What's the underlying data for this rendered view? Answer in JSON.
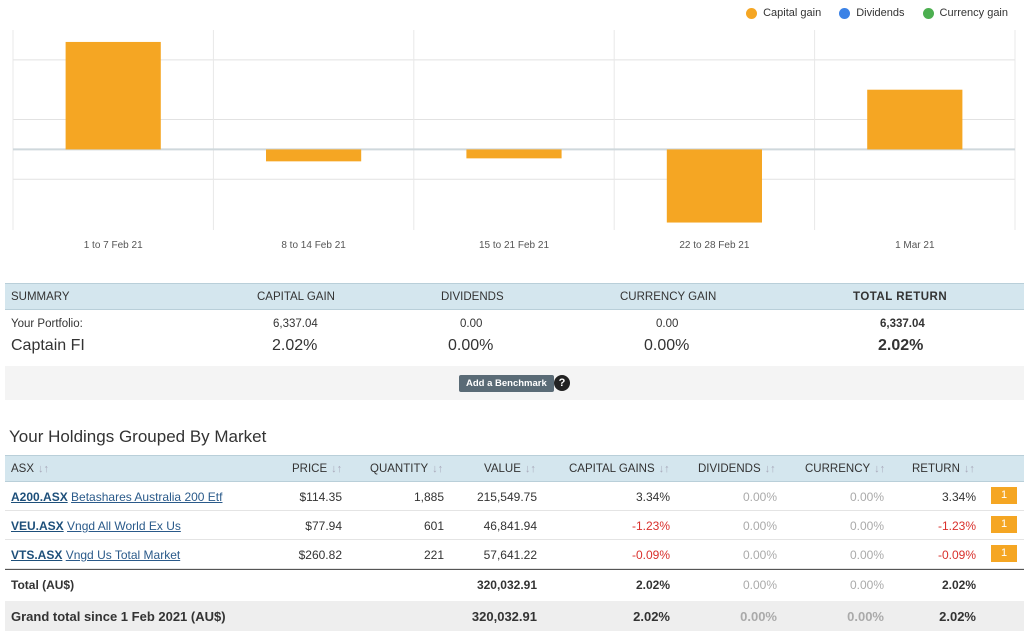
{
  "legend": [
    {
      "label": "Capital gain",
      "color": "#f5a623"
    },
    {
      "label": "Dividends",
      "color": "#3b82e6"
    },
    {
      "label": "Currency gain",
      "color": "#4caf50"
    }
  ],
  "chart_data": {
    "type": "bar",
    "categories": [
      "1 to 7 Feb 21",
      "8 to 14 Feb 21",
      "15 to 21 Feb 21",
      "22 to 28 Feb 21",
      "1 Mar 21"
    ],
    "series": [
      {
        "name": "Capital gain",
        "values": [
          3.6,
          -0.4,
          -0.3,
          -2.45,
          2.0
        ],
        "color": "#f5a623"
      }
    ],
    "ylim": [
      -2.7,
      4.0
    ],
    "grid": true
  },
  "summary": {
    "headers": {
      "summary": "SUMMARY",
      "capital_gain": "CAPITAL GAIN",
      "dividends": "DIVIDENDS",
      "currency_gain": "CURRENCY GAIN",
      "total_return": "TOTAL RETURN"
    },
    "portfolio_label": "Your Portfolio:",
    "portfolio_name": "Captain FI",
    "capital_gain_value": "6,337.04",
    "capital_gain_pct": "2.02%",
    "dividends_value": "0.00",
    "dividends_pct": "0.00%",
    "currency_value": "0.00",
    "currency_pct": "0.00%",
    "total_value": "6,337.04",
    "total_pct": "2.02%",
    "benchmark_button": "Add a Benchmark",
    "help": "?"
  },
  "holdings": {
    "title": "Your Holdings Grouped By Market",
    "headers": {
      "market": "ASX",
      "price": "PRICE",
      "quantity": "QUANTITY",
      "value": "VALUE",
      "capital_gains": "CAPITAL GAINS",
      "dividends": "DIVIDENDS",
      "currency": "CURRENCY",
      "return": "RETURN"
    },
    "sort_icon": "↓↑",
    "rows": [
      {
        "code": "A200.ASX",
        "name": "Betashares Australia 200 Etf",
        "price": "$114.35",
        "quantity": "1,885",
        "value": "215,549.75",
        "capital_gains": "3.34%",
        "dividends": "0.00%",
        "currency": "0.00%",
        "return": "3.34%",
        "badge": "1"
      },
      {
        "code": "VEU.ASX",
        "name": "Vngd All World Ex Us",
        "price": "$77.94",
        "quantity": "601",
        "value": "46,841.94",
        "capital_gains": "-1.23%",
        "dividends": "0.00%",
        "currency": "0.00%",
        "return": "-1.23%",
        "badge": "1"
      },
      {
        "code": "VTS.ASX",
        "name": "Vngd Us Total Market",
        "price": "$260.82",
        "quantity": "221",
        "value": "57,641.22",
        "capital_gains": "-0.09%",
        "dividends": "0.00%",
        "currency": "0.00%",
        "return": "-0.09%",
        "badge": "1"
      }
    ],
    "total": {
      "label": "Total (AU$)",
      "value": "320,032.91",
      "capital_gains": "2.02%",
      "dividends": "0.00%",
      "currency": "0.00%",
      "return": "2.02%"
    },
    "grand_total": {
      "label": "Grand total since 1 Feb 2021 (AU$)",
      "value": "320,032.91",
      "capital_gains": "2.02%",
      "dividends": "0.00%",
      "currency": "0.00%",
      "return": "2.02%"
    }
  }
}
